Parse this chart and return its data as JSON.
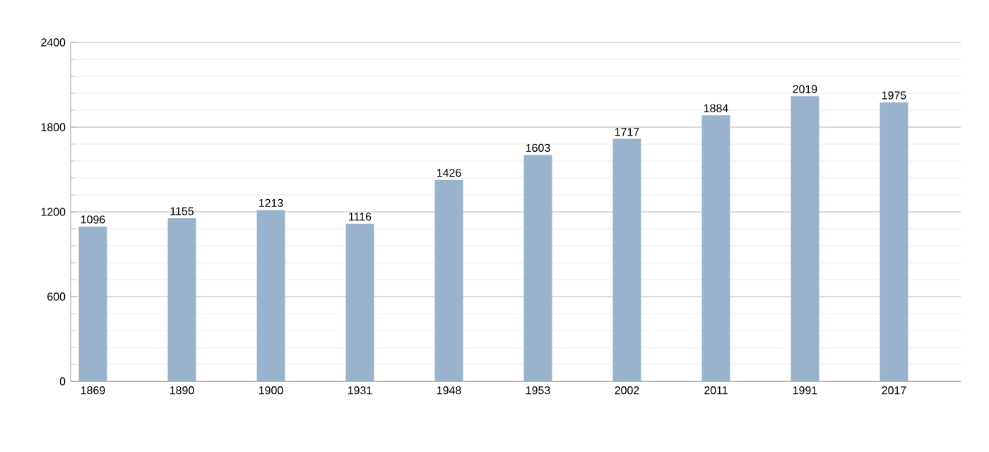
{
  "chart_data": {
    "type": "bar",
    "categories": [
      "1869",
      "1890",
      "1900",
      "1931",
      "1948",
      "1953",
      "2002",
      "2011",
      "1991",
      "2017"
    ],
    "values": [
      1096,
      1155,
      1213,
      1116,
      1426,
      1603,
      1717,
      1884,
      2019,
      1975
    ],
    "color": "#9ab3cc",
    "ylim": [
      0,
      2400
    ],
    "yticks": [
      0,
      600,
      1200,
      1800,
      2400
    ],
    "grid": "y",
    "data_labels": true
  }
}
